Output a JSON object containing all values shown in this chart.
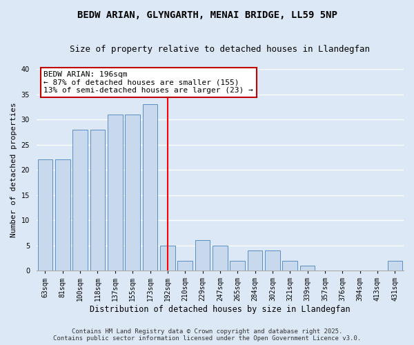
{
  "title": "BEDW ARIAN, GLYNGARTH, MENAI BRIDGE, LL59 5NP",
  "subtitle": "Size of property relative to detached houses in Llandegfan",
  "xlabel": "Distribution of detached houses by size in Llandegfan",
  "ylabel": "Number of detached properties",
  "categories": [
    "63sqm",
    "81sqm",
    "100sqm",
    "118sqm",
    "137sqm",
    "155sqm",
    "173sqm",
    "192sqm",
    "210sqm",
    "229sqm",
    "247sqm",
    "265sqm",
    "284sqm",
    "302sqm",
    "321sqm",
    "339sqm",
    "357sqm",
    "376sqm",
    "394sqm",
    "413sqm",
    "431sqm"
  ],
  "values": [
    22,
    22,
    28,
    28,
    31,
    31,
    33,
    5,
    2,
    6,
    5,
    2,
    4,
    4,
    2,
    1,
    0,
    0,
    0,
    0,
    2
  ],
  "bar_color": "#c8d9ee",
  "bar_edge_color": "#5a8fc4",
  "highlight_line_index": 7,
  "annotation_text": "BEDW ARIAN: 196sqm\n← 87% of detached houses are smaller (155)\n13% of semi-detached houses are larger (23) →",
  "annotation_box_edgecolor": "#c00000",
  "ylim": [
    0,
    40
  ],
  "yticks": [
    0,
    5,
    10,
    15,
    20,
    25,
    30,
    35,
    40
  ],
  "background_color": "#dce8f5",
  "grid_color": "#ffffff",
  "footer_text": "Contains HM Land Registry data © Crown copyright and database right 2025.\nContains public sector information licensed under the Open Government Licence v3.0.",
  "title_fontsize": 10,
  "subtitle_fontsize": 9,
  "xlabel_fontsize": 8.5,
  "ylabel_fontsize": 8,
  "tick_fontsize": 7,
  "annotation_fontsize": 8,
  "footer_fontsize": 6.5
}
